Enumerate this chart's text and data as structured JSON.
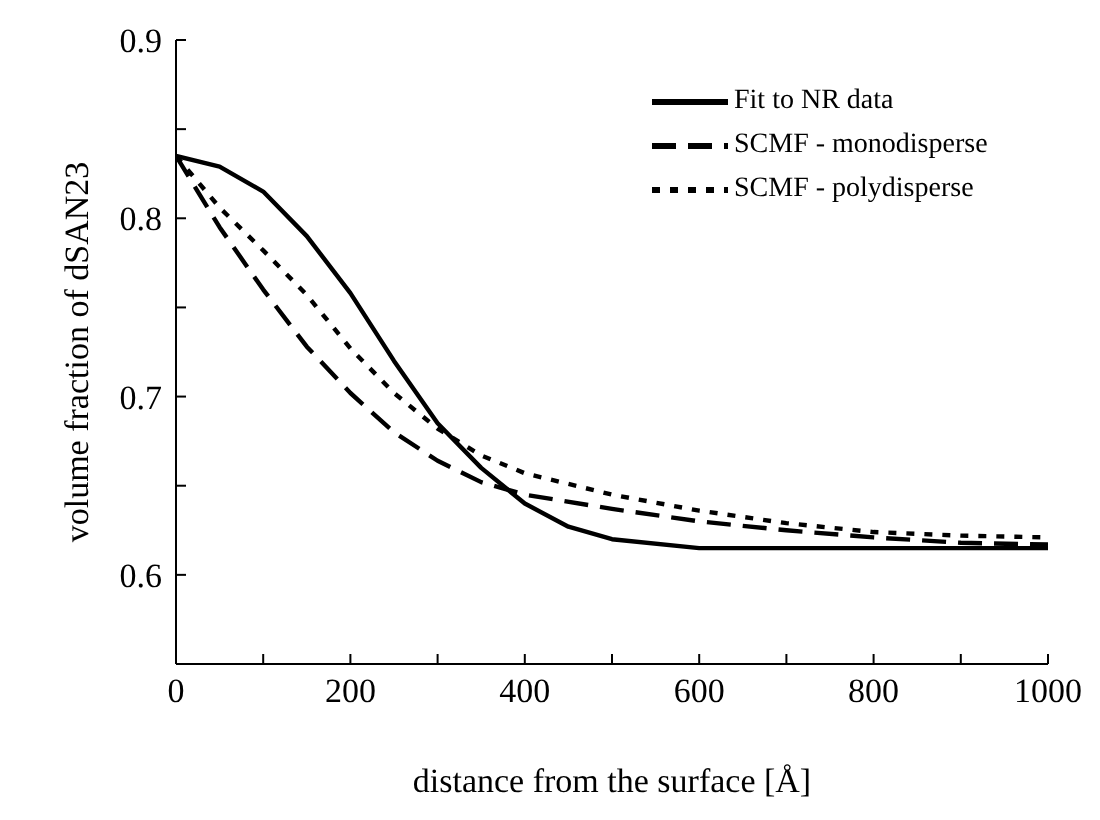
{
  "chart_data": {
    "type": "line",
    "xlabel": "distance from the surface [Å]",
    "ylabel": "volume fraction of dSAN23",
    "xlim": [
      0,
      1000
    ],
    "xticks": [
      0,
      {
        "value": 100,
        "label": null
      },
      200,
      {
        "value": 300,
        "label": null
      },
      400,
      {
        "value": 500,
        "label": null
      },
      600,
      {
        "value": 700,
        "label": null
      },
      800,
      {
        "value": 900,
        "label": null
      },
      1000
    ],
    "ylim": [
      0.55,
      0.9
    ],
    "yticks": [
      {
        "value": 0.55,
        "label": null
      },
      0.6,
      {
        "value": 0.65,
        "label": null
      },
      0.7,
      {
        "value": 0.75,
        "label": null
      },
      0.8,
      {
        "value": 0.85,
        "label": null
      },
      0.9
    ],
    "grid": false,
    "legend": "top right",
    "marker": "none",
    "series": [
      {
        "name": "Fit to NR data",
        "color": "#000000",
        "line_style": "solid",
        "x": [
          0,
          50,
          100,
          150,
          200,
          250,
          300,
          350,
          400,
          450,
          500,
          600,
          1000
        ],
        "values": [
          0.835,
          0.829,
          0.815,
          0.79,
          0.758,
          0.72,
          0.685,
          0.66,
          0.64,
          0.627,
          0.62,
          0.615,
          0.615
        ]
      },
      {
        "name": "SCMF - monodisperse",
        "color": "#000000",
        "line_style": "dashed",
        "x": [
          0,
          25,
          50,
          100,
          150,
          200,
          250,
          300,
          350,
          400,
          500,
          600,
          700,
          800,
          900,
          1000
        ],
        "values": [
          0.835,
          0.815,
          0.795,
          0.76,
          0.728,
          0.702,
          0.68,
          0.664,
          0.652,
          0.645,
          0.637,
          0.63,
          0.625,
          0.621,
          0.618,
          0.617
        ]
      },
      {
        "name": "SCMF - polydisperse",
        "color": "#000000",
        "line_style": "dotted",
        "x": [
          0,
          50,
          100,
          150,
          200,
          250,
          300,
          350,
          400,
          500,
          600,
          700,
          800,
          900,
          1000
        ],
        "values": [
          0.835,
          0.806,
          0.782,
          0.757,
          0.727,
          0.702,
          0.682,
          0.667,
          0.657,
          0.645,
          0.636,
          0.629,
          0.624,
          0.622,
          0.621
        ]
      }
    ]
  }
}
